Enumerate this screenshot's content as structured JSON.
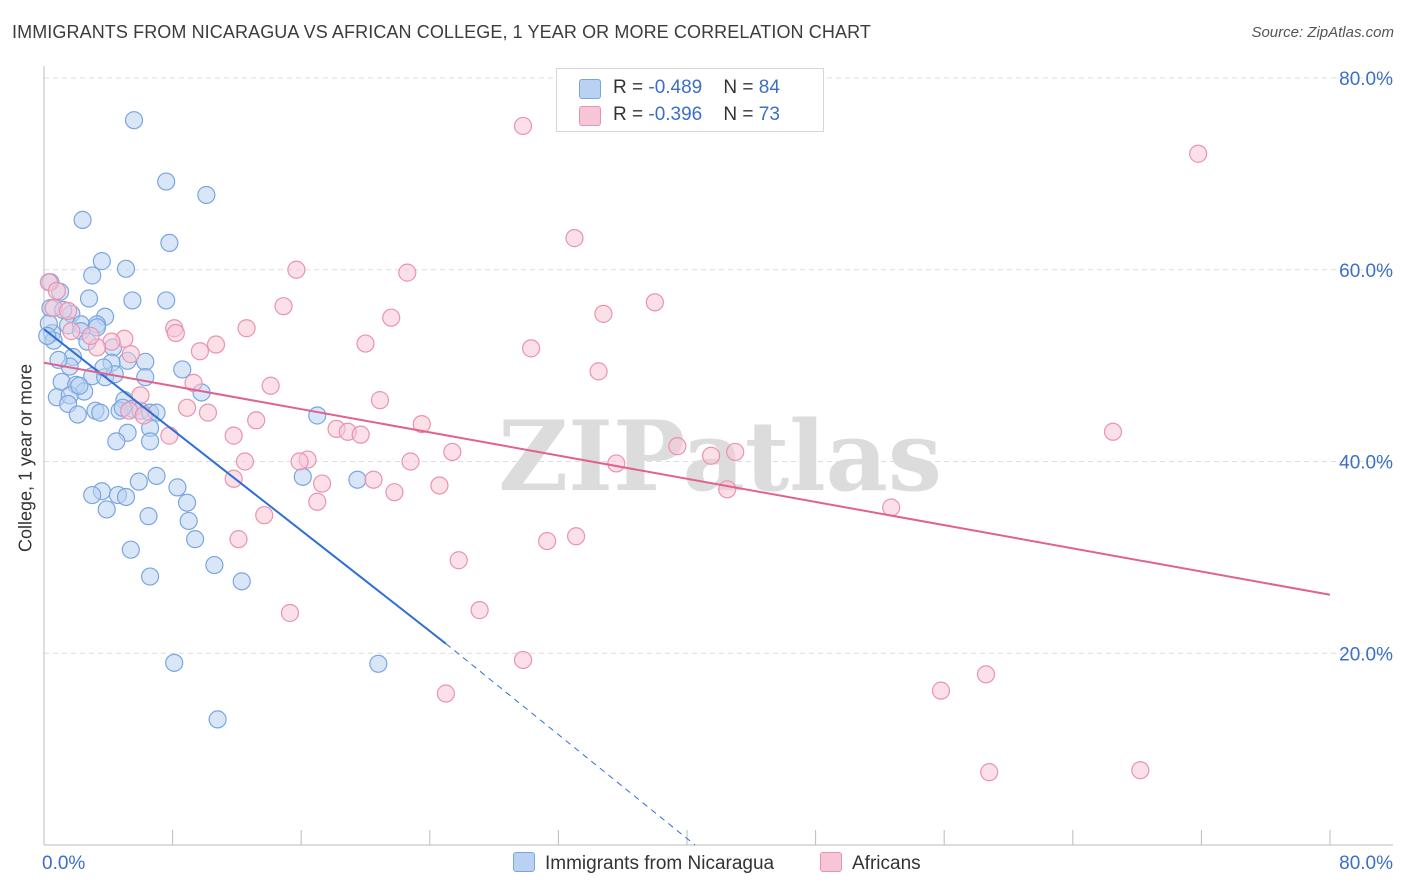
{
  "title": "IMMIGRANTS FROM NICARAGUA VS AFRICAN COLLEGE, 1 YEAR OR MORE CORRELATION CHART",
  "source": "Source: ZipAtlas.com",
  "watermark": "ZIPatlas",
  "legend": {
    "rows": [
      {
        "r_label": "R = ",
        "r_value": "-0.489",
        "n_label": "N = ",
        "n_value": "84"
      },
      {
        "r_label": "R = ",
        "r_value": "-0.396",
        "n_label": "N = ",
        "n_value": "73"
      }
    ]
  },
  "bottom_legend": {
    "series1": "Immigrants from Nicaragua",
    "series2": "Africans"
  },
  "colors": {
    "blue_fill": "#b9d2f3",
    "blue_stroke": "#7aa6e0",
    "blue_line": "#2f6fd6",
    "pink_fill": "#f7c6d6",
    "pink_stroke": "#ea93b0",
    "pink_line": "#e0628e",
    "grid": "#dddddd",
    "tick_label": "#3b6fc6"
  },
  "chart_data": {
    "type": "scatter",
    "title": "IMMIGRANTS FROM NICARAGUA VS AFRICAN COLLEGE, 1 YEAR OR MORE CORRELATION CHART",
    "xlabel": "",
    "ylabel": "College, 1 year or more",
    "xlim": [
      0,
      80
    ],
    "ylim": [
      0,
      80
    ],
    "x_tick_labels": [
      "0.0%",
      "80.0%"
    ],
    "y_tick_labels": [
      "20.0%",
      "40.0%",
      "60.0%",
      "80.0%"
    ],
    "y_ticks": [
      20,
      40,
      60,
      80
    ],
    "grid": true,
    "legend_position": "top-center",
    "series": [
      {
        "name": "Immigrants from Nicaragua",
        "color": "#7aa6e0",
        "r": -0.489,
        "n": 84,
        "trend": {
          "x": [
            0,
            25
          ],
          "y": [
            53.8,
            21.0
          ],
          "dashed_to": [
            40.5,
            0.0
          ]
        },
        "points": [
          [
            5.6,
            75.6
          ],
          [
            7.6,
            69.2
          ],
          [
            10.1,
            67.8
          ],
          [
            2.4,
            65.2
          ],
          [
            7.8,
            62.8
          ],
          [
            3.6,
            60.9
          ],
          [
            5.1,
            60.1
          ],
          [
            3.0,
            59.4
          ],
          [
            0.4,
            58.7
          ],
          [
            1.0,
            57.7
          ],
          [
            2.8,
            57.0
          ],
          [
            5.5,
            56.8
          ],
          [
            7.6,
            56.8
          ],
          [
            0.4,
            56.0
          ],
          [
            1.7,
            55.4
          ],
          [
            3.8,
            55.1
          ],
          [
            1.5,
            54.2
          ],
          [
            2.3,
            54.3
          ],
          [
            3.3,
            54.3
          ],
          [
            3.3,
            54.0
          ],
          [
            0.5,
            53.4
          ],
          [
            2.3,
            53.6
          ],
          [
            0.6,
            52.6
          ],
          [
            4.3,
            51.9
          ],
          [
            1.8,
            50.9
          ],
          [
            5.2,
            50.5
          ],
          [
            4.2,
            50.3
          ],
          [
            6.3,
            50.4
          ],
          [
            1.6,
            49.9
          ],
          [
            8.6,
            49.6
          ],
          [
            3.0,
            48.9
          ],
          [
            3.8,
            48.8
          ],
          [
            4.4,
            49.1
          ],
          [
            6.3,
            48.8
          ],
          [
            1.1,
            48.3
          ],
          [
            2.0,
            48.0
          ],
          [
            2.5,
            47.3
          ],
          [
            9.8,
            47.2
          ],
          [
            0.8,
            46.7
          ],
          [
            1.6,
            46.9
          ],
          [
            5.0,
            46.4
          ],
          [
            1.5,
            46.0
          ],
          [
            5.5,
            45.5
          ],
          [
            6.0,
            45.3
          ],
          [
            3.2,
            45.3
          ],
          [
            6.6,
            45.1
          ],
          [
            3.5,
            45.1
          ],
          [
            4.7,
            45.3
          ],
          [
            7.0,
            45.1
          ],
          [
            2.1,
            44.9
          ],
          [
            17.0,
            44.8
          ],
          [
            6.6,
            43.5
          ],
          [
            5.2,
            43.0
          ],
          [
            6.6,
            42.1
          ],
          [
            4.5,
            42.1
          ],
          [
            7.0,
            38.5
          ],
          [
            16.1,
            38.4
          ],
          [
            19.5,
            38.1
          ],
          [
            5.9,
            37.9
          ],
          [
            8.3,
            37.3
          ],
          [
            3.6,
            36.9
          ],
          [
            3.0,
            36.5
          ],
          [
            4.6,
            36.5
          ],
          [
            5.1,
            36.3
          ],
          [
            8.9,
            35.7
          ],
          [
            3.9,
            35.0
          ],
          [
            6.5,
            34.3
          ],
          [
            9.0,
            33.8
          ],
          [
            9.4,
            31.9
          ],
          [
            5.4,
            30.8
          ],
          [
            10.6,
            29.2
          ],
          [
            6.6,
            28.0
          ],
          [
            12.3,
            27.5
          ],
          [
            8.1,
            19.0
          ],
          [
            20.8,
            18.9
          ],
          [
            10.8,
            13.1
          ],
          [
            0.3,
            54.4
          ],
          [
            0.2,
            53.1
          ],
          [
            1.2,
            55.8
          ],
          [
            2.7,
            52.5
          ],
          [
            0.9,
            50.6
          ],
          [
            2.2,
            47.9
          ],
          [
            4.9,
            45.6
          ],
          [
            3.7,
            49.8
          ]
        ]
      },
      {
        "name": "Africans",
        "color": "#ea93b0",
        "r": -0.396,
        "n": 73,
        "trend": {
          "x": [
            0,
            80
          ],
          "y": [
            50.3,
            26.1
          ]
        },
        "points": [
          [
            29.8,
            75.0
          ],
          [
            71.8,
            72.1
          ],
          [
            33.0,
            63.3
          ],
          [
            15.7,
            60.0
          ],
          [
            22.6,
            59.7
          ],
          [
            0.3,
            58.7
          ],
          [
            0.8,
            57.8
          ],
          [
            38.0,
            56.6
          ],
          [
            14.9,
            56.2
          ],
          [
            0.6,
            56.0
          ],
          [
            34.8,
            55.4
          ],
          [
            21.6,
            55.0
          ],
          [
            12.6,
            53.9
          ],
          [
            8.1,
            53.9
          ],
          [
            1.7,
            53.6
          ],
          [
            8.2,
            53.4
          ],
          [
            5.0,
            52.8
          ],
          [
            4.2,
            52.5
          ],
          [
            10.7,
            52.2
          ],
          [
            20.0,
            52.3
          ],
          [
            3.3,
            51.9
          ],
          [
            30.3,
            51.8
          ],
          [
            9.7,
            51.5
          ],
          [
            5.4,
            51.2
          ],
          [
            34.5,
            49.4
          ],
          [
            9.3,
            48.2
          ],
          [
            14.1,
            47.9
          ],
          [
            6.0,
            46.9
          ],
          [
            20.9,
            46.4
          ],
          [
            8.9,
            45.6
          ],
          [
            5.3,
            45.3
          ],
          [
            10.2,
            45.1
          ],
          [
            6.2,
            44.8
          ],
          [
            23.5,
            43.9
          ],
          [
            18.2,
            43.4
          ],
          [
            66.5,
            43.1
          ],
          [
            18.9,
            43.1
          ],
          [
            19.7,
            42.8
          ],
          [
            11.8,
            42.7
          ],
          [
            7.8,
            42.7
          ],
          [
            39.4,
            41.6
          ],
          [
            43.0,
            41.0
          ],
          [
            25.4,
            41.0
          ],
          [
            41.5,
            40.6
          ],
          [
            16.4,
            40.2
          ],
          [
            15.9,
            40.0
          ],
          [
            12.5,
            40.0
          ],
          [
            22.8,
            40.0
          ],
          [
            35.6,
            39.8
          ],
          [
            11.8,
            38.2
          ],
          [
            20.5,
            38.1
          ],
          [
            17.3,
            37.7
          ],
          [
            24.6,
            37.5
          ],
          [
            42.5,
            37.1
          ],
          [
            21.8,
            36.8
          ],
          [
            17.0,
            35.8
          ],
          [
            52.7,
            35.2
          ],
          [
            13.7,
            34.4
          ],
          [
            33.1,
            32.2
          ],
          [
            12.1,
            31.9
          ],
          [
            31.3,
            31.7
          ],
          [
            25.8,
            29.7
          ],
          [
            27.1,
            24.5
          ],
          [
            15.3,
            24.2
          ],
          [
            29.8,
            19.3
          ],
          [
            58.6,
            17.8
          ],
          [
            25.0,
            15.8
          ],
          [
            55.8,
            16.1
          ],
          [
            58.8,
            7.6
          ],
          [
            68.2,
            7.8
          ],
          [
            1.5,
            55.7
          ],
          [
            2.9,
            53.1
          ],
          [
            13.2,
            44.3
          ]
        ]
      }
    ]
  }
}
